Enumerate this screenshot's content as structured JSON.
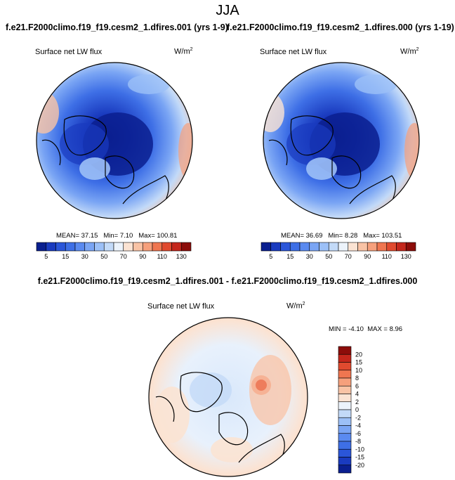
{
  "page": {
    "season": "JJA",
    "header_left": "f.e21.F2000climo.f19_f19.cesm2_1.dfires.001 (yrs 1-9)",
    "header_right": "f.e21.F2000climo.f19_f19.cesm2_1.dfires.000 (yrs 1-19)",
    "diff_header": "f.e21.F2000climo.f19_f19.cesm2_1.dfires.001 - f.e21.F2000climo.f19_f19.cesm2_1.dfires.000"
  },
  "chart_data": [
    {
      "type": "heatmap",
      "projection": "north-polar-stereographic",
      "title": "Surface net LW flux",
      "units_base": "W/m",
      "units_exp": "2",
      "stats": {
        "mean": "MEAN=  37.15",
        "min": "Min=   7.10",
        "max": "Max=  100.81"
      },
      "levels": [
        "5",
        "10",
        "15",
        "20",
        "30",
        "40",
        "50",
        "60",
        "70",
        "80",
        "90",
        "100",
        "110",
        "120",
        "130"
      ],
      "tick_labels": [
        "5",
        "15",
        "30",
        "50",
        "70",
        "90",
        "110",
        "130"
      ],
      "colors": [
        "#0a1f8f",
        "#1a3bbf",
        "#2b56d9",
        "#3e6fe6",
        "#5a8af0",
        "#7aa5f4",
        "#9cc0f7",
        "#c3daf8",
        "#ecf3fb",
        "#fbe3d3",
        "#f9c3a5",
        "#f6a07c",
        "#ef7650",
        "#e04a2f",
        "#c4271c",
        "#8c0d0a"
      ]
    },
    {
      "type": "heatmap",
      "projection": "north-polar-stereographic",
      "title": "Surface net LW flux",
      "units_base": "W/m",
      "units_exp": "2",
      "stats": {
        "mean": "MEAN=  36.69",
        "min": "Min=   8.28",
        "max": "Max=  103.51"
      },
      "levels": [
        "5",
        "10",
        "15",
        "20",
        "30",
        "40",
        "50",
        "60",
        "70",
        "80",
        "90",
        "100",
        "110",
        "120",
        "130"
      ],
      "tick_labels": [
        "5",
        "15",
        "30",
        "50",
        "70",
        "90",
        "110",
        "130"
      ],
      "colors": [
        "#0a1f8f",
        "#1a3bbf",
        "#2b56d9",
        "#3e6fe6",
        "#5a8af0",
        "#7aa5f4",
        "#9cc0f7",
        "#c3daf8",
        "#ecf3fb",
        "#fbe3d3",
        "#f9c3a5",
        "#f6a07c",
        "#ef7650",
        "#e04a2f",
        "#c4271c",
        "#8c0d0a"
      ]
    },
    {
      "type": "heatmap",
      "projection": "north-polar-stereographic",
      "title": "Surface net LW flux",
      "units_base": "W/m",
      "units_exp": "2",
      "stats": {
        "min": "MIN = -4.10",
        "max": "MAX =  8.96"
      },
      "levels": [
        "20",
        "15",
        "10",
        "8",
        "6",
        "4",
        "2",
        "0",
        "-2",
        "-4",
        "-6",
        "-8",
        "-10",
        "-15",
        "-20"
      ],
      "colors": [
        "#8c0d0a",
        "#c4271c",
        "#e04a2f",
        "#ef7650",
        "#f6a07c",
        "#f9c3a5",
        "#fbe3d3",
        "#ecf3fb",
        "#c3daf8",
        "#9cc0f7",
        "#7aa5f4",
        "#5a8af0",
        "#3e6fe6",
        "#2b56d9",
        "#1a3bbf",
        "#0a1f8f"
      ]
    }
  ]
}
